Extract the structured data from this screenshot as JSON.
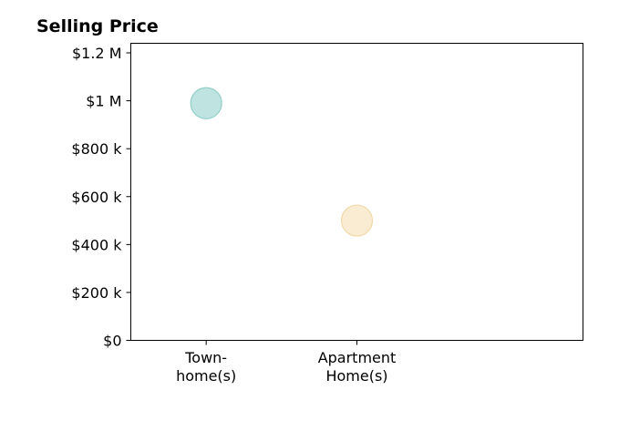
{
  "chart_data": {
    "type": "scatter",
    "title": "Selling Price",
    "xlabel": "",
    "ylabel": "",
    "categories": [
      [
        "Town-",
        "home(s)"
      ],
      [
        "Apartment",
        "Home(s)"
      ]
    ],
    "y_ticks": [
      {
        "value": 0,
        "label": "$0"
      },
      {
        "value": 200000,
        "label": "$200 k"
      },
      {
        "value": 400000,
        "label": "$400 k"
      },
      {
        "value": 600000,
        "label": "$600 k"
      },
      {
        "value": 800000,
        "label": "$800 k"
      },
      {
        "value": 1000000,
        "label": "$1 M"
      },
      {
        "value": 1200000,
        "label": "$1.2 M"
      }
    ],
    "ylim": [
      0,
      1240000
    ],
    "xlim": [
      -0.5,
      2.5
    ],
    "points": [
      {
        "x": 0,
        "y": 990000,
        "color": "#a8dad5",
        "stroke": "#94cfc9"
      },
      {
        "x": 1,
        "y": 500000,
        "color": "#f7e6c4",
        "stroke": "#f0d9a8"
      }
    ],
    "grid": false,
    "legend": "none"
  }
}
